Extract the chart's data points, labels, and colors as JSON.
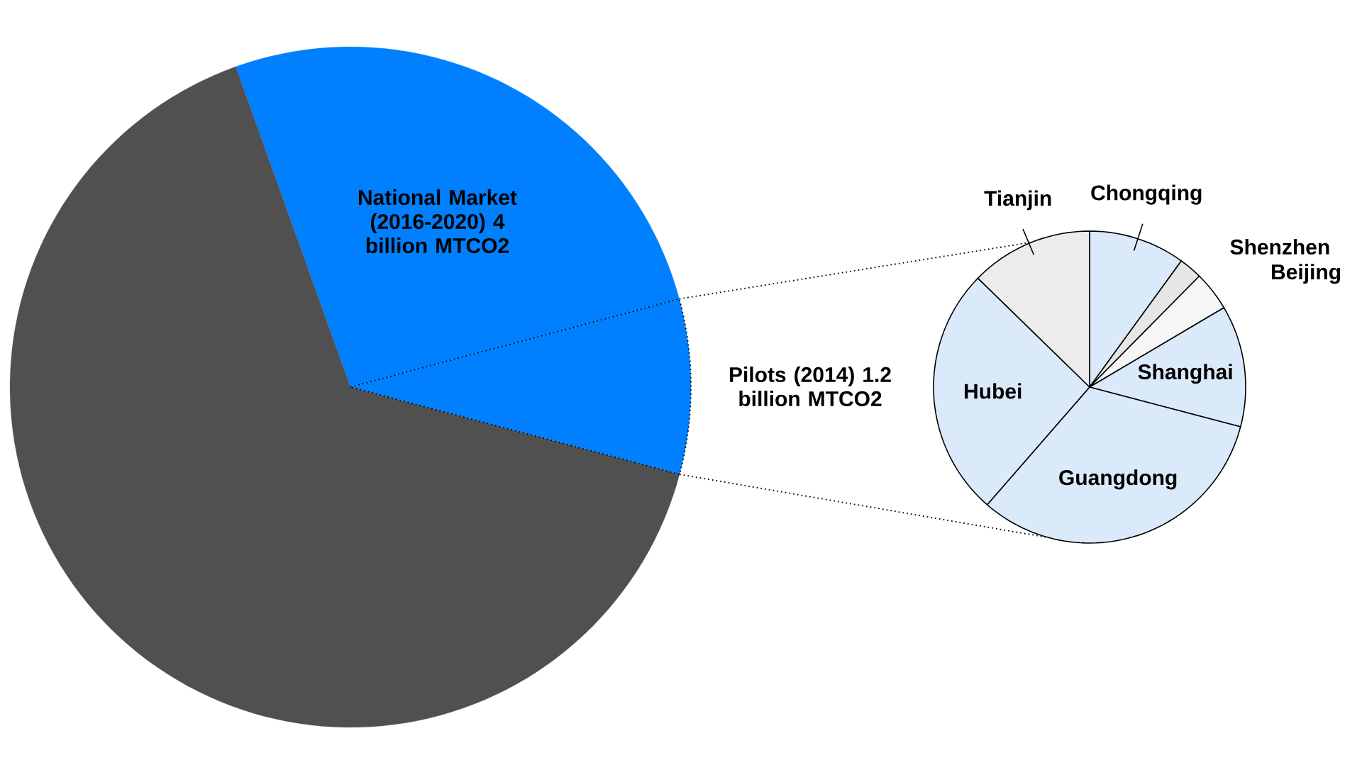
{
  "chart_data": [
    {
      "type": "pie",
      "categories": [
        "National Market (2016-2020) 4 billion MTCO2",
        "Pilots (2014) 1.2 billion MTCO2",
        null
      ],
      "values": [
        26.3,
        8.3,
        65.4
      ],
      "colors": [
        "#0080ff",
        "#0080ff",
        "#505050"
      ]
    },
    {
      "type": "pie",
      "categories": [
        "Chongqing",
        "Shenzhen",
        "Beijing",
        "Shanghai",
        "Guangdong",
        "Hubei",
        "Tianjin"
      ],
      "values": [
        10.0,
        2.4,
        4.1,
        12.6,
        32.3,
        25.9,
        12.7
      ],
      "colors": [
        "#dbeafb",
        "#e6e6e6",
        "#f6f6f6",
        "#dbeafb",
        "#dbeafb",
        "#dbeafb",
        "#ececec"
      ]
    }
  ]
}
